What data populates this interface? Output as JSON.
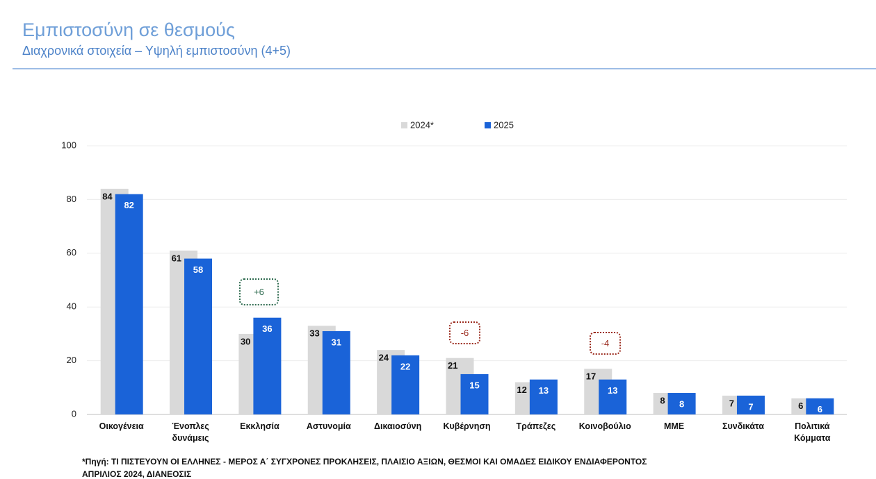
{
  "header": {
    "title": "Εμπιστοσύνη σε θεσμούς",
    "subtitle": "Διαχρονικά στοιχεία – Υψηλή εμπιστοσύνη (4+5)"
  },
  "chart_data": {
    "type": "bar",
    "categories": [
      "Οικογένεια",
      "Ένοπλες δυνάμεις",
      "Εκκλησία",
      "Αστυνομία",
      "Δικαιοσύνη",
      "Κυβέρνηση",
      "Τράπεζες",
      "Κοινοβούλιο",
      "ΜΜΕ",
      "Συνδικάτα",
      "Πολιτικά Κόμματα"
    ],
    "series": [
      {
        "name": "2024*",
        "color": "#d9d9d9",
        "values": [
          84,
          61,
          30,
          33,
          24,
          21,
          12,
          17,
          8,
          7,
          6
        ]
      },
      {
        "name": "2025",
        "color": "#1a63d8",
        "values": [
          82,
          58,
          36,
          31,
          22,
          15,
          13,
          13,
          8,
          7,
          6
        ]
      }
    ],
    "ylim": [
      0,
      100
    ],
    "yticks": [
      0,
      20,
      40,
      60,
      80,
      100
    ],
    "grid": true,
    "annotations": [
      "+6",
      "-6",
      "-4"
    ]
  },
  "footnote": [
    "*Πηγή: ΤΙ ΠΙΣΤΕΥΟΥΝ ΟΙ ΕΛΛΗΝΕΣ - ΜΕΡΟΣ Α΄ ΣΥΓΧΡΟΝΕΣ ΠΡΟΚΛΗΣΕΙΣ, ΠΛΑΙΣΙΟ ΑΞΙΩΝ, ΘΕΣΜΟΙ ΚΑΙ ΟΜΑΔΕΣ ΕΙΔΙΚΟΥ ΕΝΔΙΑΦΕΡΟΝΤΟΣ",
    "ΑΠΡΙΛΙΟΣ 2024, ΔΙΑΝΕΟΣΙΣ"
  ]
}
